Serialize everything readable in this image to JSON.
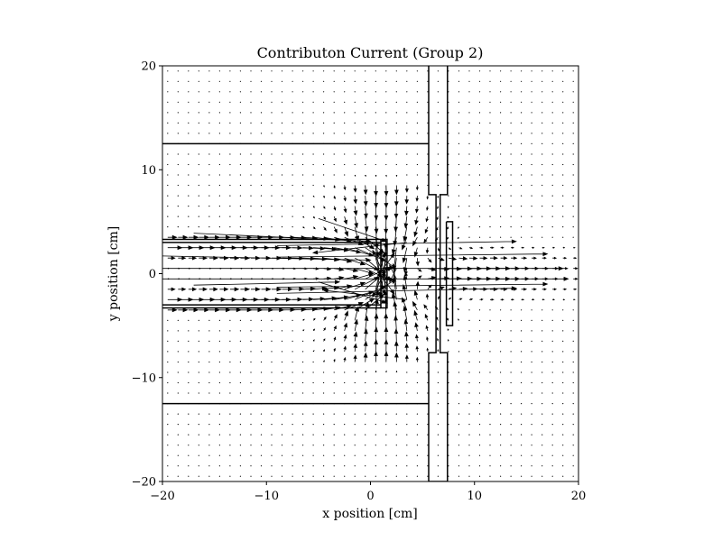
{
  "chart_data": {
    "type": "quiver",
    "title": "Contributon Current (Group 2)",
    "xlabel": "x position [cm]",
    "ylabel": "y position [cm]",
    "xlim": [
      -20,
      20
    ],
    "ylim": [
      -20,
      20
    ],
    "xticks": [
      -20,
      -10,
      0,
      10,
      20
    ],
    "yticks": [
      -20,
      -10,
      0,
      10,
      20
    ],
    "xtick_labels": [
      "−20",
      "−10",
      "0",
      "10",
      "20"
    ],
    "ytick_labels": [
      "−20",
      "−10",
      "0",
      "10",
      "20"
    ],
    "grid": false,
    "geometry_outlines": [
      {
        "name": "top-cylinder-boundary",
        "points": [
          [
            -20,
            12.5
          ],
          [
            5.6,
            12.5
          ]
        ]
      },
      {
        "name": "bottom-cylinder-boundary",
        "points": [
          [
            -20,
            -12.5
          ],
          [
            5.6,
            -12.5
          ]
        ]
      },
      {
        "name": "upper-channel-top",
        "points": [
          [
            -20,
            3.3
          ],
          [
            1.0,
            3.3
          ]
        ]
      },
      {
        "name": "upper-channel-bottom",
        "points": [
          [
            -20,
            3.0
          ],
          [
            1.0,
            3.0
          ]
        ]
      },
      {
        "name": "lower-channel-top",
        "points": [
          [
            -20,
            -3.0
          ],
          [
            1.0,
            -3.0
          ]
        ]
      },
      {
        "name": "lower-channel-bottom",
        "points": [
          [
            -20,
            -3.3
          ],
          [
            1.0,
            -3.3
          ]
        ]
      },
      {
        "name": "detector-plate",
        "points": [
          [
            1.0,
            3.3
          ],
          [
            1.6,
            3.3
          ],
          [
            1.6,
            -3.3
          ],
          [
            1.0,
            -3.3
          ],
          [
            1.0,
            3.3
          ]
        ]
      },
      {
        "name": "shield-wall",
        "points": [
          [
            5.6,
            20
          ],
          [
            5.6,
            7.6
          ],
          [
            6.3,
            7.6
          ],
          [
            6.3,
            -7.6
          ],
          [
            5.6,
            -7.6
          ],
          [
            5.6,
            -20
          ],
          [
            7.4,
            -20
          ],
          [
            7.4,
            -7.6
          ],
          [
            6.7,
            -7.6
          ],
          [
            6.7,
            7.6
          ],
          [
            7.4,
            7.6
          ],
          [
            7.4,
            20
          ]
        ]
      },
      {
        "name": "target-slab",
        "points": [
          [
            7.3,
            5.0
          ],
          [
            7.9,
            5.0
          ],
          [
            7.9,
            -5.0
          ],
          [
            7.3,
            -5.0
          ],
          [
            7.3,
            5.0
          ]
        ]
      }
    ],
    "vector_field": {
      "grid_x_range": [
        -19.5,
        19.5
      ],
      "grid_y_range": [
        -19.5,
        19.5
      ],
      "grid_step": 1.0,
      "direction": "mostly +x along channels y = -2.5 to 2.5; converging toward detector at x = 1",
      "long_arrows": [
        {
          "x": -20,
          "y": 1.7,
          "u": 20.0,
          "v": -0.4
        },
        {
          "x": -20,
          "y": 0.5,
          "u": 38.5,
          "v": 0.0
        },
        {
          "x": -20,
          "y": -0.5,
          "u": 39.0,
          "v": 0.0
        },
        {
          "x": -17,
          "y": -1.1,
          "u": 14.0,
          "v": 0.3
        },
        {
          "x": -17,
          "y": 3.9,
          "u": 17.0,
          "v": -0.8
        },
        {
          "x": -9,
          "y": 1.6,
          "u": 26.0,
          "v": 0.3
        },
        {
          "x": -9,
          "y": -1.3,
          "u": 26.0,
          "v": 0.3
        },
        {
          "x": -9,
          "y": 2.7,
          "u": 23.0,
          "v": 0.4
        },
        {
          "x": -9,
          "y": -1.9,
          "u": 23.0,
          "v": 0.5
        },
        {
          "x": -5,
          "y": 5.3,
          "u": 6.5,
          "v": -2.2
        },
        {
          "x": -5,
          "y": -0.8,
          "u": 6.5,
          "v": -2.0
        },
        {
          "x": 3.5,
          "y": 3.0,
          "u": -9.0,
          "v": -1.0
        },
        {
          "x": 3.5,
          "y": -2.5,
          "u": -8.0,
          "v": 0.9
        }
      ]
    }
  }
}
